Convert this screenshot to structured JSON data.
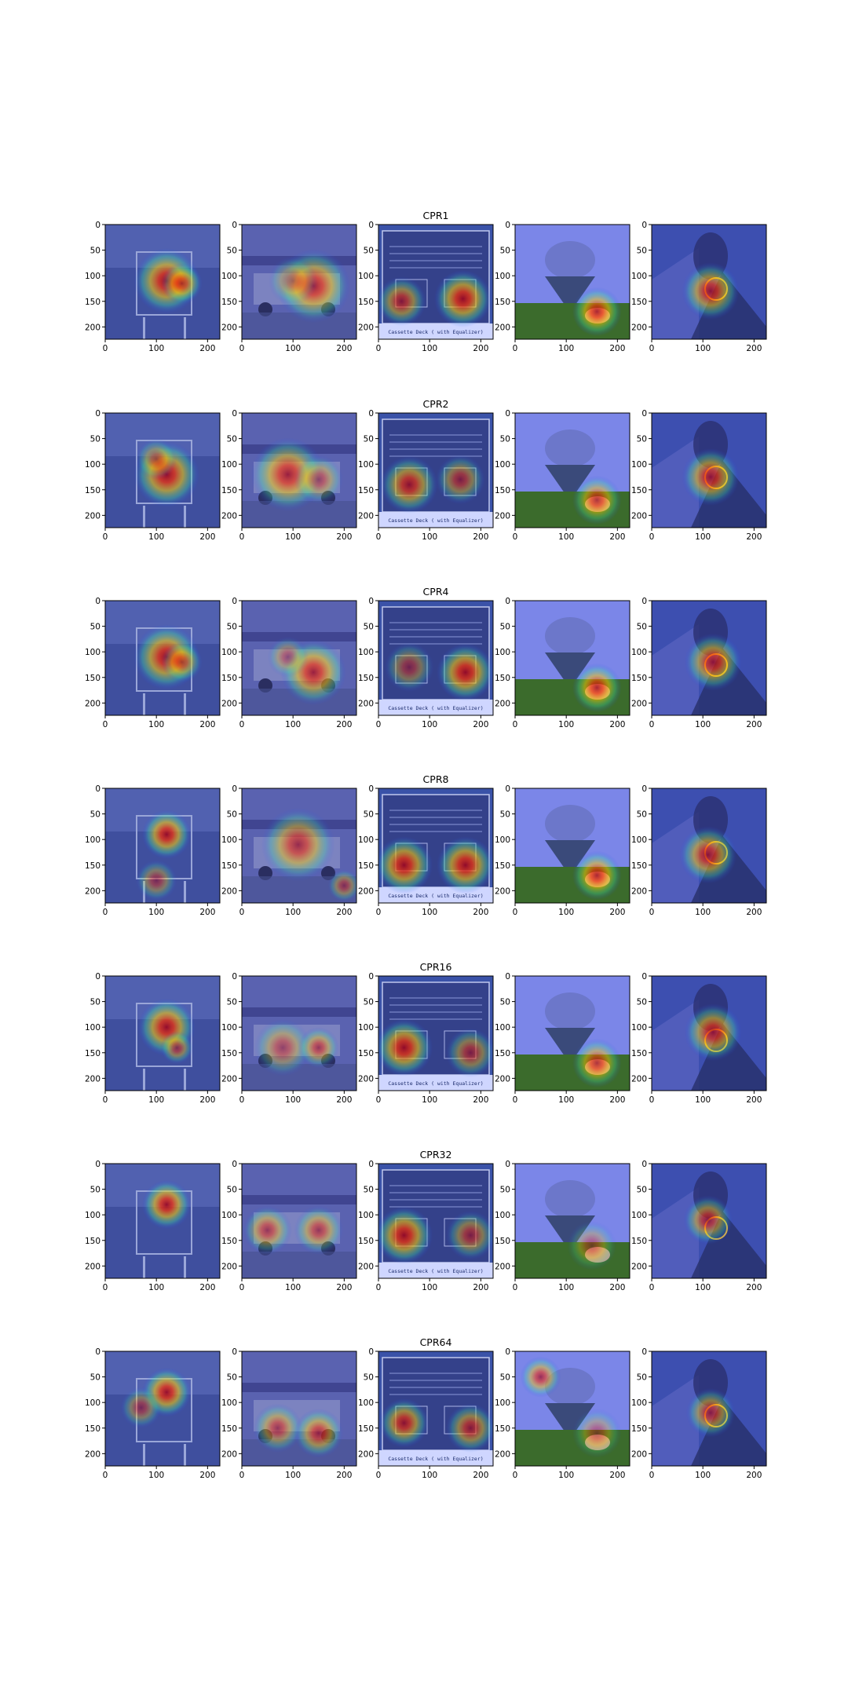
{
  "figure": {
    "rows": [
      {
        "title": "CPR1"
      },
      {
        "title": "CPR2"
      },
      {
        "title": "CPR4"
      },
      {
        "title": "CPR8"
      },
      {
        "title": "CPR16"
      },
      {
        "title": "CPR32"
      },
      {
        "title": "CPR64"
      }
    ],
    "panel_caption": "Cassette Deck ( with Equalizer)"
  },
  "chart_data": {
    "type": "heatmap",
    "layout": {
      "rows": 7,
      "cols": 5
    },
    "titles": [
      "CPR1",
      "CPR2",
      "CPR4",
      "CPR8",
      "CPR16",
      "CPR32",
      "CPR64"
    ],
    "xlim": [
      0,
      224
    ],
    "ylim": [
      224,
      0
    ],
    "xticks": [
      0,
      100,
      200
    ],
    "yticks": [
      0,
      50,
      100,
      150,
      200
    ],
    "colormap": "jet",
    "panels": [
      "scoreboard",
      "truck",
      "cassette-deck",
      "spinning-top",
      "saxophone-player"
    ],
    "hotspots": [
      [
        [
          [
            120,
            110,
            40,
            1.0
          ],
          [
            150,
            115,
            25,
            0.8
          ]
        ],
        [
          [
            140,
            120,
            45,
            0.9
          ],
          [
            100,
            110,
            30,
            0.5
          ]
        ],
        [
          [
            45,
            150,
            30,
            0.8
          ],
          [
            165,
            145,
            35,
            1.0
          ]
        ],
        [
          [
            160,
            170,
            30,
            0.9
          ]
        ],
        [
          [
            115,
            130,
            35,
            0.9
          ]
        ]
      ],
      [
        [
          [
            120,
            120,
            40,
            1.0
          ],
          [
            100,
            90,
            25,
            0.6
          ]
        ],
        [
          [
            90,
            120,
            45,
            0.9
          ],
          [
            150,
            130,
            30,
            0.6
          ]
        ],
        [
          [
            60,
            140,
            35,
            0.9
          ],
          [
            160,
            130,
            30,
            0.7
          ]
        ],
        [
          [
            160,
            170,
            30,
            0.8
          ]
        ],
        [
          [
            115,
            125,
            35,
            0.9
          ]
        ]
      ],
      [
        [
          [
            120,
            110,
            40,
            1.0
          ],
          [
            150,
            120,
            25,
            0.7
          ]
        ],
        [
          [
            140,
            140,
            40,
            0.9
          ],
          [
            90,
            110,
            25,
            0.5
          ]
        ],
        [
          [
            170,
            140,
            35,
            1.0
          ],
          [
            60,
            130,
            30,
            0.6
          ]
        ],
        [
          [
            160,
            170,
            30,
            0.9
          ]
        ],
        [
          [
            120,
            120,
            35,
            0.9
          ]
        ]
      ],
      [
        [
          [
            120,
            90,
            30,
            1.0
          ],
          [
            100,
            180,
            25,
            0.6
          ]
        ],
        [
          [
            110,
            110,
            45,
            0.8
          ],
          [
            200,
            190,
            20,
            0.6
          ]
        ],
        [
          [
            50,
            150,
            35,
            1.0
          ],
          [
            170,
            150,
            35,
            1.0
          ]
        ],
        [
          [
            160,
            170,
            30,
            0.9
          ]
        ],
        [
          [
            110,
            130,
            35,
            0.9
          ]
        ]
      ],
      [
        [
          [
            120,
            100,
            35,
            1.0
          ],
          [
            140,
            140,
            20,
            0.7
          ]
        ],
        [
          [
            80,
            140,
            35,
            0.6
          ],
          [
            150,
            140,
            25,
            0.7
          ]
        ],
        [
          [
            50,
            140,
            35,
            1.0
          ],
          [
            180,
            150,
            30,
            0.7
          ]
        ],
        [
          [
            160,
            170,
            30,
            0.8
          ]
        ],
        [
          [
            120,
            110,
            35,
            0.9
          ]
        ]
      ],
      [
        [
          [
            120,
            80,
            30,
            1.0
          ]
        ],
        [
          [
            50,
            130,
            30,
            0.7
          ],
          [
            150,
            130,
            30,
            0.7
          ]
        ],
        [
          [
            50,
            140,
            35,
            1.0
          ],
          [
            180,
            140,
            30,
            0.7
          ]
        ],
        [
          [
            150,
            160,
            30,
            0.5
          ]
        ],
        [
          [
            110,
            110,
            30,
            0.8
          ]
        ]
      ],
      [
        [
          [
            120,
            80,
            30,
            1.0
          ],
          [
            70,
            110,
            25,
            0.6
          ]
        ],
        [
          [
            70,
            150,
            30,
            0.7
          ],
          [
            150,
            160,
            30,
            0.8
          ]
        ],
        [
          [
            50,
            140,
            30,
            0.9
          ],
          [
            180,
            150,
            30,
            0.8
          ]
        ],
        [
          [
            50,
            50,
            25,
            0.8
          ],
          [
            160,
            160,
            30,
            0.5
          ]
        ],
        [
          [
            115,
            120,
            30,
            0.8
          ]
        ]
      ]
    ]
  }
}
